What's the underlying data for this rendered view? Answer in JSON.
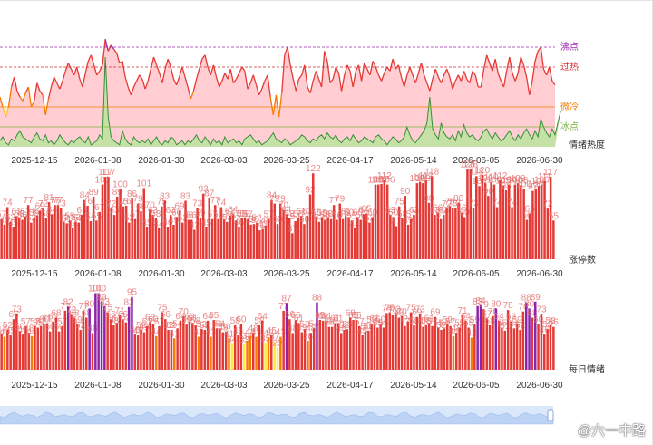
{
  "chart_data": [
    {
      "type": "area",
      "panel": "情绪热度",
      "label": "情绪热度",
      "ref_lines": [
        {
          "name": "沸点",
          "value": 5,
          "color": "#9c27b0"
        },
        {
          "name": "过热",
          "value": 4,
          "color": "#d32f2f"
        },
        {
          "name": "微冷",
          "value": 2,
          "color": "#f57c00"
        },
        {
          "name": "冰点",
          "value": 1,
          "color": "#7cb342"
        }
      ],
      "series": [
        {
          "values": [
            2.5,
            2.0,
            1.5,
            2.0,
            3.0,
            3.5,
            2.8,
            2.5,
            2.3,
            2.7,
            3.0,
            2.0,
            2.3,
            3.2,
            2.8,
            2.6,
            1.6,
            2.4,
            3.0,
            3.5,
            3.2,
            2.9,
            3.3,
            3.8,
            4.2,
            3.9,
            3.6,
            4.0,
            3.4,
            3.0,
            3.7,
            4.3,
            4.6,
            4.1,
            3.6,
            3.8,
            4.1,
            5.4,
            4.8,
            5.1,
            4.9,
            4.7,
            4.2,
            4.3,
            3.5,
            3.0,
            2.6,
            3.0,
            3.3,
            3.6,
            3.4,
            2.9,
            3.3,
            3.9,
            4.5,
            4.1,
            3.7,
            3.2,
            3.9,
            4.4,
            4.0,
            3.4,
            3.1,
            3.5,
            4.0,
            3.5,
            3.0,
            2.4,
            2.8,
            3.4,
            3.9,
            4.4,
            4.6,
            4.0,
            3.6,
            4.1,
            3.5,
            3.0,
            3.3,
            3.7,
            3.4,
            3.9,
            3.2,
            3.4,
            3.7,
            4.0,
            3.8,
            2.9,
            3.2,
            3.6,
            3.1,
            2.6,
            2.9,
            3.3,
            3.6,
            2.5,
            1.6,
            2.6,
            1.5,
            2.7,
            4.6,
            5.0,
            4.1,
            3.4,
            2.8,
            3.4,
            3.6,
            4.1,
            3.0,
            2.7,
            3.3,
            3.8,
            3.4,
            3.0,
            4.8,
            4.3,
            3.2,
            3.4,
            4.0,
            3.7,
            2.8,
            3.6,
            4.1,
            3.8,
            3.0,
            3.8,
            4.1,
            3.3,
            4.2,
            3.9,
            3.6,
            4.3,
            4.0,
            3.6,
            3.3,
            3.7,
            4.0,
            3.8,
            4.4,
            3.9,
            4.1,
            3.5,
            3.0,
            3.6,
            4.0,
            3.6,
            3.2,
            3.7,
            4.2,
            3.6,
            3.2,
            2.8,
            3.4,
            3.9,
            3.5,
            3.2,
            3.6,
            3.9,
            3.5,
            2.9,
            3.3,
            3.6,
            3.3,
            3.8,
            3.4,
            3.2,
            3.8,
            3.6,
            3.0,
            3.0,
            3.9,
            4.6,
            4.2,
            3.8,
            4.4,
            3.7,
            3.3,
            3.0,
            3.8,
            4.5,
            3.7,
            3.3,
            3.7,
            4.5,
            4.1,
            3.5,
            2.6,
            3.3,
            4.3,
            4.8,
            5.0,
            3.9,
            3.6,
            4.0,
            3.3,
            3.1
          ],
          "color": "#e53935"
        },
        {
          "values": [
            0.3,
            0.5,
            0.2,
            0.1,
            0.4,
            0.3,
            0.6,
            0.8,
            0.5,
            0.4,
            0.3,
            0.2,
            0.5,
            0.7,
            0.4,
            0.3,
            0.6,
            0.2,
            0.3,
            0.1,
            0.3,
            0.6,
            0.4,
            0.2,
            0.1,
            0.3,
            0.2,
            0.4,
            0.5,
            0.3,
            0.2,
            0.5,
            0.1,
            0.2,
            0.3,
            0.6,
            0.4,
            4.5,
            1.5,
            0.5,
            0.3,
            0.2,
            0.1,
            0.8,
            0.4,
            0.2,
            0.1,
            0.5,
            0.3,
            0.2,
            0.3,
            0.2,
            0.4,
            0.1,
            0.3,
            0.5,
            0.2,
            0.1,
            0.3,
            0.2,
            0.5,
            0.4,
            0.1,
            0.2,
            0.3,
            0.1,
            0.3,
            0.2,
            0.4,
            0.6,
            0.3,
            0.2,
            0.5,
            0.3,
            0.1,
            0.4,
            0.2,
            0.3,
            0.1,
            0.5,
            0.2,
            0.3,
            0.4,
            0.2,
            0.3,
            0.1,
            0.4,
            0.5,
            0.6,
            0.4,
            0.2,
            0.3,
            0.1,
            0.2,
            0.3,
            0.5,
            0.7,
            0.4,
            0.3,
            0.2,
            0.4,
            0.3,
            0.1,
            0.2,
            0.3,
            0.4,
            0.6,
            0.5,
            0.3,
            0.2,
            0.4,
            0.3,
            0.5,
            0.6,
            0.4,
            0.7,
            0.5,
            0.4,
            0.6,
            0.3,
            0.2,
            0.4,
            0.5,
            0.3,
            0.6,
            0.4,
            0.2,
            0.3,
            0.5,
            0.4,
            0.3,
            0.2,
            0.5,
            0.6,
            0.4,
            0.3,
            0.1,
            0.3,
            0.5,
            0.4,
            0.2,
            0.3,
            0.5,
            1.0,
            0.6,
            0.3,
            0.2,
            0.4,
            0.6,
            0.8,
            1.2,
            2.5,
            0.9,
            0.6,
            0.4,
            1.2,
            0.7,
            0.5,
            0.4,
            0.6,
            0.3,
            0.8,
            0.5,
            1.1,
            0.7,
            0.5,
            0.6,
            0.4,
            0.3,
            0.5,
            0.8,
            0.9,
            0.6,
            0.4,
            0.7,
            0.5,
            0.3,
            0.4,
            0.6,
            0.8,
            0.5,
            0.3,
            0.6,
            0.4,
            0.7,
            0.9,
            0.6,
            0.4,
            0.8,
            0.5,
            1.4,
            1.0,
            0.7,
            0.5,
            0.9,
            0.6,
            1.2,
            1.8
          ],
          "color": "#388e3c"
        }
      ],
      "ylim": [
        0,
        6
      ]
    },
    {
      "type": "bar",
      "panel": "涨停数",
      "label": "涨停数",
      "values": [
        57,
        49,
        74,
        53,
        45,
        61,
        58,
        56,
        61,
        77,
        52,
        59,
        62,
        69,
        72,
        58,
        81,
        64,
        77,
        77,
        73,
        53,
        51,
        55,
        44,
        53,
        52,
        63,
        84,
        76,
        54,
        89,
        55,
        67,
        106,
        117,
        117,
        72,
        63,
        89,
        100,
        75,
        76,
        52,
        86,
        57,
        79,
        68,
        101,
        45,
        70,
        63,
        58,
        44,
        75,
        83,
        46,
        63,
        49,
        60,
        69,
        52,
        83,
        56,
        56,
        42,
        73,
        59,
        93,
        45,
        87,
        57,
        77,
        57,
        74,
        57,
        53,
        62,
        64,
        55,
        46,
        58,
        58,
        57,
        49,
        50,
        52,
        41,
        43,
        48,
        57,
        84,
        79,
        50,
        79,
        70,
        64,
        58,
        37,
        54,
        58,
        61,
        50,
        62,
        92,
        122,
        60,
        53,
        59,
        56,
        58,
        57,
        77,
        56,
        79,
        57,
        61,
        60,
        55,
        44,
        60,
        56,
        64,
        65,
        52,
        60,
        106,
        106,
        107,
        112,
        106,
        63,
        60,
        47,
        75,
        58,
        90,
        49,
        57,
        63,
        108,
        110,
        108,
        112,
        80,
        118,
        63,
        66,
        57,
        63,
        72,
        75,
        73,
        73,
        80,
        66,
        60,
        128,
        128,
        73,
        118,
        104,
        120,
        108,
        90,
        110,
        106,
        74,
        112,
        105,
        98,
        106,
        74,
        106,
        108,
        105,
        100,
        56,
        65,
        97,
        100,
        104,
        106,
        111,
        72,
        117,
        55
      ],
      "ylim": [
        0,
        130
      ]
    },
    {
      "type": "bar",
      "panel": "每日情绪",
      "label": "每日情绪",
      "values": [
        47,
        43,
        52,
        45,
        66,
        73,
        50,
        46,
        57,
        48,
        44,
        57,
        55,
        57,
        60,
        61,
        50,
        63,
        68,
        50,
        57,
        77,
        82,
        72,
        68,
        59,
        52,
        77,
        68,
        80,
        48,
        100,
        100,
        89,
        83,
        75,
        66,
        58,
        61,
        71,
        66,
        62,
        82,
        95,
        46,
        45,
        52,
        49,
        57,
        62,
        60,
        44,
        57,
        75,
        66,
        52,
        52,
        41,
        54,
        64,
        70,
        59,
        63,
        61,
        58,
        43,
        53,
        52,
        64,
        43,
        65,
        54,
        54,
        49,
        50,
        41,
        34,
        58,
        45,
        60,
        33,
        38,
        44,
        48,
        43,
        58,
        64,
        35,
        42,
        45,
        37,
        29,
        43,
        77,
        87,
        66,
        48,
        65,
        61,
        49,
        53,
        38,
        48,
        54,
        88,
        65,
        64,
        64,
        56,
        56,
        61,
        61,
        48,
        52,
        53,
        68,
        65,
        65,
        57,
        45,
        50,
        51,
        59,
        61,
        55,
        60,
        55,
        74,
        75,
        71,
        73,
        68,
        70,
        57,
        63,
        75,
        58,
        69,
        73,
        56,
        58,
        61,
        57,
        69,
        55,
        52,
        54,
        59,
        57,
        44,
        48,
        55,
        71,
        64,
        55,
        42,
        59,
        83,
        84,
        79,
        67,
        58,
        70,
        80,
        64,
        55,
        51,
        78,
        63,
        54,
        59,
        52,
        76,
        88,
        80,
        68,
        89,
        60,
        73,
        46,
        53,
        58,
        56
      ],
      "ylim": [
        0,
        110
      ]
    }
  ],
  "x_ticks": [
    "2025-12-15",
    "2026-01-08",
    "2026-01-30",
    "2026-03-03",
    "2026-03-25",
    "2026-04-17",
    "2026-05-14",
    "2026-06-05",
    "2026-06-30"
  ],
  "bar_labels_top": {
    "panel2": [
      "74",
      "77",
      "81",
      "77",
      "106",
      "117",
      "117",
      "100",
      "86",
      "101",
      "83",
      "83",
      "93",
      "87",
      "77",
      "74",
      "62",
      "84",
      "79",
      "122",
      "79",
      "76",
      "106",
      "106",
      "107",
      "112",
      "90",
      "110",
      "118",
      "128",
      "104",
      "120",
      "110",
      "106"
    ],
    "panel3": [
      "73",
      "66",
      "82",
      "100",
      "100",
      "89",
      "95",
      "75",
      "70",
      "87",
      "88",
      "68",
      "75",
      "69",
      "84",
      "80",
      "89",
      "73"
    ]
  },
  "colors": {
    "heat_line": "#e53935",
    "heat_fill_red": "#ffcdd2",
    "heat_fill_purple": "#ce93d8",
    "ice_fill": "#c5e1a5",
    "ice_band": "#eef7dc",
    "warm_band": "#fff3cd",
    "bar_red": "#e53935",
    "bar_purple": "#8e24aa",
    "bar_orange": "#f57c00",
    "bar_yellow": "#ffeb3b",
    "bar_label": "#e57373",
    "navigator": "#dbe8fb"
  },
  "watermark": "@六一中路"
}
